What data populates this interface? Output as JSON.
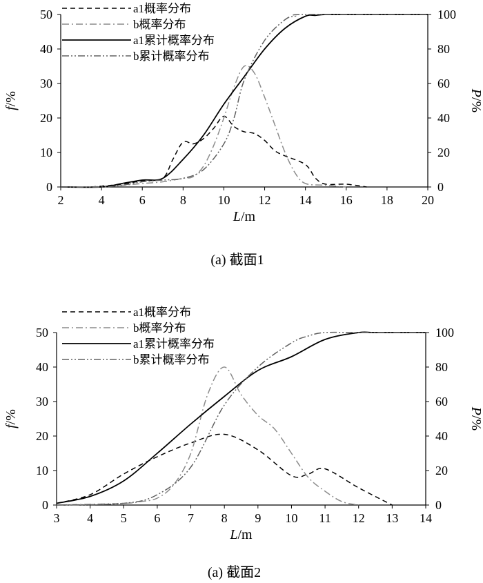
{
  "chart_data": [
    {
      "type": "line",
      "caption": "(a) 截面1",
      "xlabel_var": "L",
      "xlabel_unit": "/m",
      "ylabel_var": "f",
      "ylabel_unit": "/%",
      "y2label_var": "P",
      "y2label_unit": "/%",
      "xlim": [
        2,
        20
      ],
      "ylim": [
        0,
        50
      ],
      "y2lim": [
        0,
        100
      ],
      "xticks": [
        2,
        4,
        6,
        8,
        10,
        12,
        14,
        16,
        18,
        20
      ],
      "yticks": [
        0,
        10,
        20,
        30,
        40,
        50
      ],
      "y2ticks": [
        0,
        20,
        40,
        60,
        80,
        100
      ],
      "legend_position": "top-left",
      "series": [
        {
          "name": "a1概率分布",
          "axis": "left",
          "style": "dashed",
          "color": "#000000",
          "x": [
            3.5,
            5,
            6,
            7,
            7.5,
            8,
            8.5,
            9,
            9.5,
            10,
            10.5,
            11,
            11.5,
            12,
            12.5,
            13,
            14,
            14.5,
            15,
            16,
            17
          ],
          "y": [
            0,
            0.8,
            1.8,
            2.5,
            8,
            13,
            12.5,
            14,
            17,
            20.5,
            17.5,
            16,
            15.5,
            13.5,
            10.5,
            9,
            6.5,
            2.5,
            0.8,
            0.8,
            0
          ]
        },
        {
          "name": "b概率分布",
          "axis": "left",
          "style": "dashdot",
          "color": "#8c8c8c",
          "x": [
            3.5,
            5,
            6,
            7,
            8,
            8.5,
            9,
            9.5,
            10,
            10.5,
            11,
            11.5,
            12,
            12.5,
            13,
            13.5,
            14,
            15,
            16
          ],
          "y": [
            0,
            0.5,
            1,
            1.5,
            2.5,
            3,
            6,
            12,
            20,
            29,
            35,
            33,
            26,
            18,
            10,
            4,
            1,
            0.5,
            0
          ]
        },
        {
          "name": "a1累计概率分布",
          "axis": "right",
          "style": "solid",
          "color": "#000000",
          "x": [
            2,
            4,
            5,
            6,
            7,
            8,
            9,
            10,
            11,
            12,
            13,
            14,
            14.5,
            15,
            16,
            20
          ],
          "y": [
            0,
            0,
            2,
            4,
            5,
            16,
            30,
            48,
            64,
            80,
            92,
            99,
            99.5,
            100,
            100,
            100
          ]
        },
        {
          "name": "b累计概率分布",
          "axis": "right",
          "style": "dashdotdot",
          "color": "#606060",
          "x": [
            2,
            4,
            5,
            6,
            7,
            8,
            9,
            10,
            10.5,
            11,
            12,
            13,
            13.5,
            14,
            20
          ],
          "y": [
            0,
            0,
            1,
            3,
            4,
            5,
            10,
            25,
            40,
            62,
            85,
            97,
            99,
            100,
            100
          ]
        }
      ]
    },
    {
      "type": "line",
      "caption": "(a) 截面2",
      "xlabel_var": "L",
      "xlabel_unit": "/m",
      "ylabel_var": "f",
      "ylabel_unit": "/%",
      "y2label_var": "P",
      "y2label_unit": "/%",
      "xlim": [
        3,
        14
      ],
      "ylim": [
        0,
        50
      ],
      "y2lim": [
        0,
        100
      ],
      "xticks": [
        3,
        4,
        5,
        6,
        7,
        8,
        9,
        10,
        11,
        12,
        13,
        14
      ],
      "yticks": [
        0,
        10,
        20,
        30,
        40,
        50
      ],
      "y2ticks": [
        0,
        20,
        40,
        60,
        80,
        100
      ],
      "legend_position": "top-left",
      "series": [
        {
          "name": "a1概率分布",
          "axis": "left",
          "style": "dashed",
          "color": "#000000",
          "x": [
            3,
            4,
            5,
            6,
            7,
            8,
            9,
            10,
            10.5,
            11,
            12,
            13
          ],
          "y": [
            0.5,
            3,
            9,
            14,
            18,
            20.5,
            16,
            8.5,
            9,
            10.5,
            5,
            0
          ]
        },
        {
          "name": "b概率分布",
          "axis": "left",
          "style": "dashdot",
          "color": "#8c8c8c",
          "x": [
            3,
            5,
            5.5,
            6,
            6.5,
            7,
            7.5,
            8,
            8.5,
            9,
            9.5,
            10,
            10.5,
            11,
            11.5,
            12
          ],
          "y": [
            0,
            0.5,
            1,
            2,
            6,
            15,
            32,
            40,
            32,
            26,
            22,
            15,
            8,
            4,
            1,
            0
          ]
        },
        {
          "name": "a1累计概率分布",
          "axis": "right",
          "style": "solid",
          "color": "#000000",
          "x": [
            3,
            4,
            5,
            6,
            7,
            8,
            9,
            10,
            11,
            12,
            12.5,
            14
          ],
          "y": [
            1,
            5,
            14,
            30,
            47,
            63,
            78,
            86,
            96,
            100,
            100,
            100
          ]
        },
        {
          "name": "b累计概率分布",
          "axis": "right",
          "style": "dashdotdot",
          "color": "#606060",
          "x": [
            3,
            5,
            6,
            7,
            8,
            9,
            10,
            10.5,
            11,
            12,
            14
          ],
          "y": [
            0,
            1,
            6,
            22,
            58,
            80,
            94,
            98,
            100,
            100,
            100
          ]
        }
      ]
    }
  ]
}
